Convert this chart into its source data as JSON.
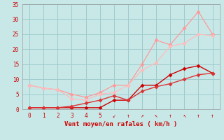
{
  "xlabel": "Vent moyen/en rafales ( km/h )",
  "xlim": [
    -0.5,
    13.5
  ],
  "ylim": [
    0,
    35
  ],
  "xticks": [
    0,
    1,
    2,
    3,
    4,
    5,
    6,
    7,
    8,
    9,
    10,
    11,
    12,
    13
  ],
  "yticks": [
    0,
    5,
    10,
    15,
    20,
    25,
    30,
    35
  ],
  "background_color": "#c8e8e8",
  "grid_color": "#a0cccc",
  "line1_color": "#ff9999",
  "line2_color": "#ffbbbb",
  "line3_color": "#cc0000",
  "line4_color": "#dd3333",
  "line1_x": [
    0,
    1,
    2,
    3,
    4,
    5,
    6,
    7,
    8,
    9,
    10,
    11,
    12,
    13
  ],
  "line1_y": [
    8,
    7,
    6.5,
    5,
    4,
    5.5,
    8,
    8,
    15,
    23,
    21.5,
    27,
    32.5,
    25
  ],
  "line2_x": [
    0,
    1,
    2,
    3,
    4,
    5,
    6,
    7,
    8,
    9,
    10,
    11,
    12,
    13
  ],
  "line2_y": [
    8,
    7,
    6.5,
    3.5,
    3,
    5,
    5.5,
    8,
    13,
    15.5,
    21,
    22,
    25,
    24.5
  ],
  "line3_x": [
    0,
    1,
    2,
    3,
    4,
    5,
    6,
    7,
    8,
    9,
    10,
    11,
    12,
    13
  ],
  "line3_y": [
    0.5,
    0.5,
    0.5,
    0.5,
    0.5,
    0.5,
    3,
    3,
    8,
    8,
    11.5,
    13.5,
    14.5,
    12
  ],
  "line4_x": [
    0,
    1,
    2,
    3,
    4,
    5,
    6,
    7,
    8,
    9,
    10,
    11,
    12,
    13
  ],
  "line4_y": [
    0.5,
    0.5,
    0.5,
    1,
    2,
    3,
    4.5,
    3,
    6,
    7.5,
    8.5,
    10,
    11.5,
    12
  ],
  "xtick_labels": [
    "0",
    "1",
    "2",
    "3",
    "4",
    "5",
    "↙",
    "↑",
    "↗",
    "↖",
    "↑",
    "↖",
    "↑",
    "↑"
  ]
}
